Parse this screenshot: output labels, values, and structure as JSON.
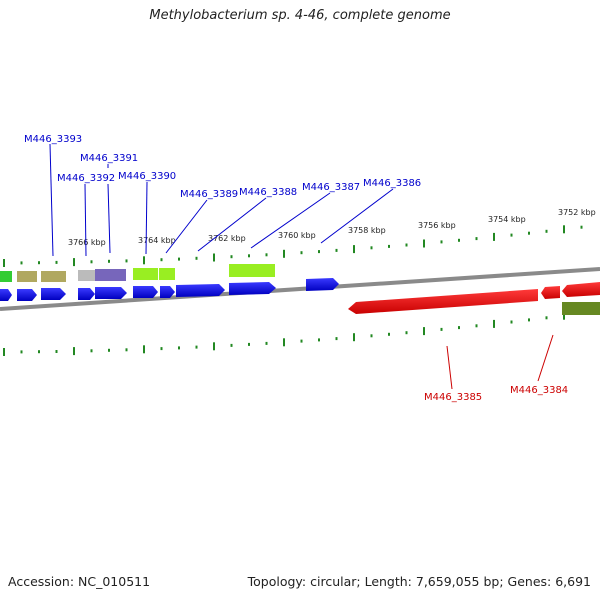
{
  "title": "Methylobacterium sp. 4-46, complete genome",
  "footer": {
    "accession": "Accession: NC_010511",
    "summary": "Topology: circular; Length: 7,659,055 bp; Genes: 6,691"
  },
  "ruler_labels": [
    "3766 kbp",
    "3764 kbp",
    "3762 kbp",
    "3760 kbp",
    "3758 kbp",
    "3756 kbp",
    "3754 kbp",
    "3752 kbp"
  ],
  "gene_labels_forward": [
    "M446_3393",
    "M446_3391",
    "M446_3392",
    "M446_3390",
    "M446_3389",
    "M446_3388",
    "M446_3387",
    "M446_3386"
  ],
  "gene_labels_reverse": [
    "M446_3385",
    "M446_3384"
  ],
  "colors": {
    "forward_gene": "#0000ee",
    "reverse_gene": "#ee0000",
    "backbone": "#888888",
    "tick": "#228822",
    "label_forward": "#0000cc",
    "label_reverse": "#cc0000"
  }
}
